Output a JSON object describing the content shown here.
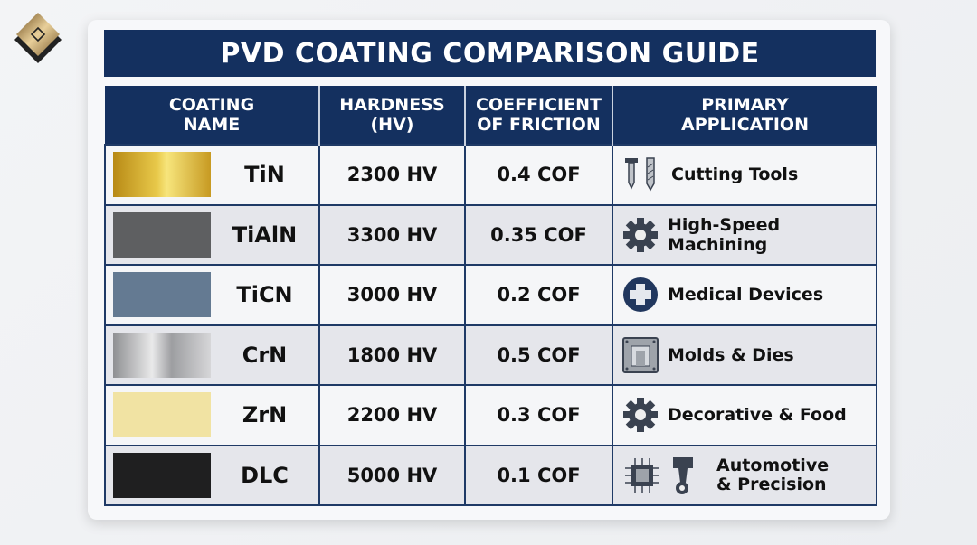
{
  "title": "PVD COATING COMPARISON GUIDE",
  "header_lines": [
    [
      "COATING",
      "NAME"
    ],
    [
      "HARDNESS",
      "(HV)"
    ],
    [
      "COEFFICIENT",
      "OF FRICTION"
    ],
    [
      "PRIMARY",
      "APPLICATION"
    ]
  ],
  "colors": {
    "navy": "#14305f",
    "icon": "#3a4250"
  },
  "rows": [
    {
      "name": "TiN",
      "hardness": "2300 HV",
      "cof": "0.4 COF",
      "application": "Cutting Tools",
      "icon": "drill-bits-icon",
      "swatch": "linear-gradient(90deg,#b88a16,#e8c94a 45%,#f7e57c 55%,#c79a22)"
    },
    {
      "name": "TiAlN",
      "hardness": "3300 HV",
      "cof": "0.35 COF",
      "application": "High-Speed Machining",
      "icon": "gear-icon",
      "swatch": "#5e5f61"
    },
    {
      "name": "TiCN",
      "hardness": "3000 HV",
      "cof": "0.2 COF",
      "application": "Medical Devices",
      "icon": "medical-cross-icon",
      "swatch": "#647a92"
    },
    {
      "name": "CrN",
      "hardness": "1800 HV",
      "cof": "0.5 COF",
      "application": "Molds & Dies",
      "icon": "mold-icon",
      "swatch": "linear-gradient(90deg,#8f9093,#e9e9ea 40%,#9d9ea1 60%,#d6d6d8)"
    },
    {
      "name": "ZrN",
      "hardness": "2200 HV",
      "cof": "0.3 COF",
      "application": "Decorative & Food",
      "icon": "gear-icon",
      "swatch": "#f1e3a3"
    },
    {
      "name": "DLC",
      "hardness": "5000 HV",
      "cof": "0.1 COF",
      "application": "Automotive & Precision",
      "icon": "chip-piston-icon",
      "swatch": "#1f1f20"
    }
  ]
}
